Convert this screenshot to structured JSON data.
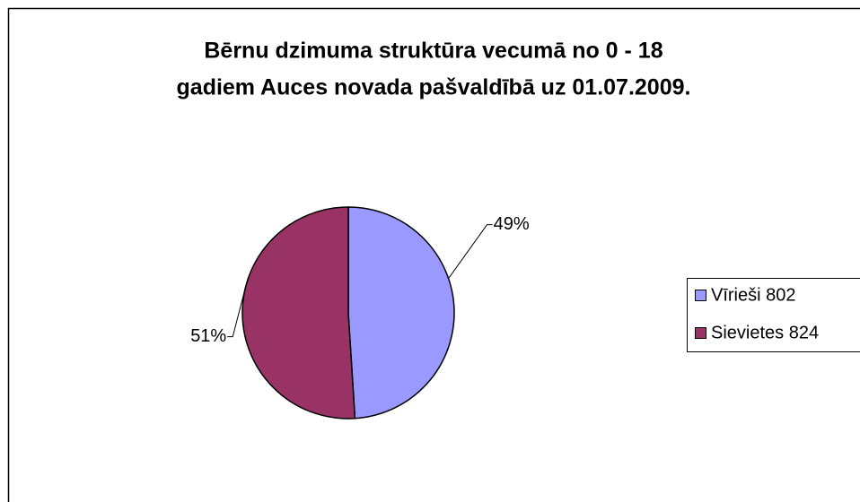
{
  "chart_data": {
    "type": "pie",
    "title": [
      "Bērnu dzimuma struktūra vecumā no 0 - 18",
      "gadiem Auces novada pašvaldībā uz 01.07.2009."
    ],
    "categories": [
      "Vīrieši 802",
      "Sievietes 824"
    ],
    "values": [
      49,
      51
    ],
    "value_labels": [
      "49%",
      "51%"
    ],
    "colors": [
      "#9999ff",
      "#993366"
    ],
    "legend": "right"
  }
}
